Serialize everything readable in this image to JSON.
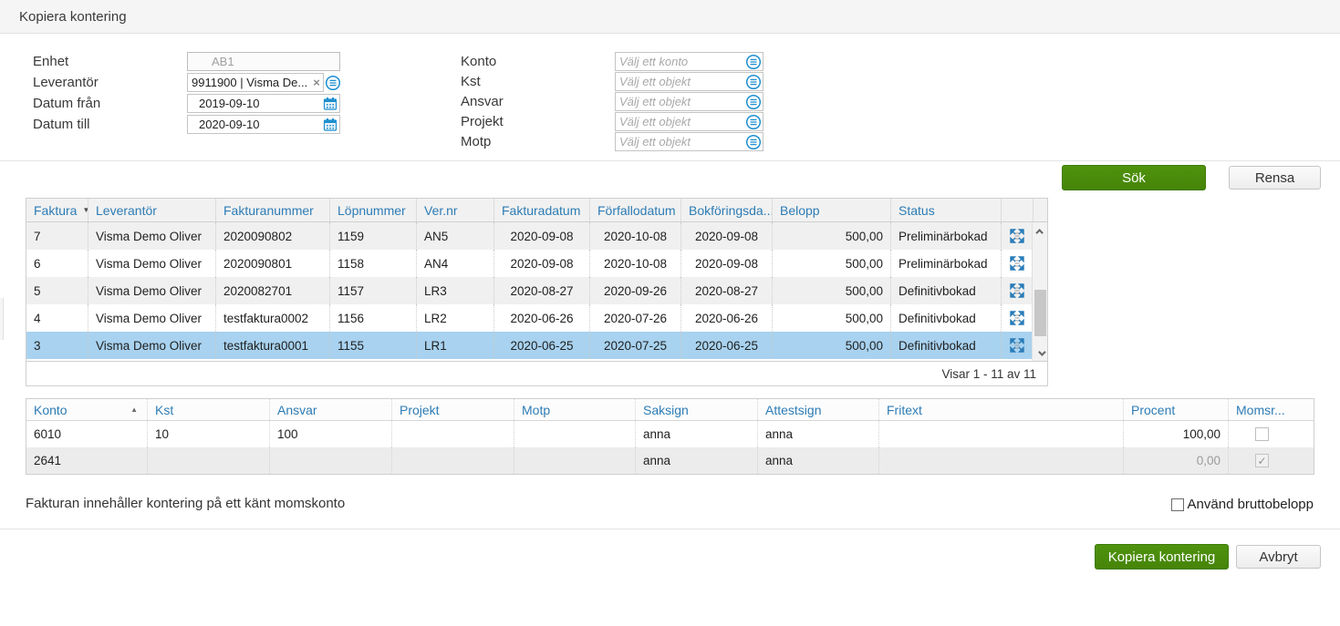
{
  "header": {
    "title": "Kopiera kontering"
  },
  "filters": {
    "left": [
      {
        "label": "Enhet",
        "value": "AB1"
      },
      {
        "label": "Leverantör",
        "value": "9911900 | Visma De..."
      },
      {
        "label": "Datum från",
        "value": "2019-09-10"
      },
      {
        "label": "Datum till",
        "value": "2020-09-10"
      }
    ],
    "right": [
      {
        "label": "Konto",
        "placeholder": "Välj ett konto"
      },
      {
        "label": "Kst",
        "placeholder": "Välj ett objekt"
      },
      {
        "label": "Ansvar",
        "placeholder": "Välj ett objekt"
      },
      {
        "label": "Projekt",
        "placeholder": "Välj ett objekt"
      },
      {
        "label": "Motp",
        "placeholder": "Välj ett objekt"
      }
    ]
  },
  "actions": {
    "search_label": "Sök",
    "clear_label": "Rensa"
  },
  "invoice_grid": {
    "columns": [
      "Faktura",
      "Leverantör",
      "Fakturanummer",
      "Löpnummer",
      "Ver.nr",
      "Fakturadatum",
      "Förfallodatum",
      "Bokföringsda...",
      "Belopp",
      "Status"
    ],
    "sort": {
      "column": "Faktura",
      "direction": "desc"
    },
    "rows": [
      [
        "7",
        "Visma Demo Oliver",
        "2020090802",
        "1159",
        "AN5",
        "2020-09-08",
        "2020-10-08",
        "2020-09-08",
        "500,00",
        "Preliminärbokad"
      ],
      [
        "6",
        "Visma Demo Oliver",
        "2020090801",
        "1158",
        "AN4",
        "2020-09-08",
        "2020-10-08",
        "2020-09-08",
        "500,00",
        "Preliminärbokad"
      ],
      [
        "5",
        "Visma Demo Oliver",
        "2020082701",
        "1157",
        "LR3",
        "2020-08-27",
        "2020-09-26",
        "2020-08-27",
        "500,00",
        "Definitivbokad"
      ],
      [
        "4",
        "Visma Demo Oliver",
        "testfaktura0002",
        "1156",
        "LR2",
        "2020-06-26",
        "2020-07-26",
        "2020-06-26",
        "500,00",
        "Definitivbokad"
      ],
      [
        "3",
        "Visma Demo Oliver",
        "testfaktura0001",
        "1155",
        "LR1",
        "2020-06-25",
        "2020-07-25",
        "2020-06-25",
        "500,00",
        "Definitivbokad"
      ]
    ],
    "selected_row_index": 4,
    "pagination": "Visar 1 - 11 av 11"
  },
  "accounting_grid": {
    "columns": [
      "Konto",
      "Kst",
      "Ansvar",
      "Projekt",
      "Motp",
      "Saksign",
      "Attestsign",
      "Fritext",
      "Procent",
      "Momsr..."
    ],
    "sort": {
      "column": "Konto",
      "direction": "asc"
    },
    "rows": [
      {
        "cells": [
          "6010",
          "10",
          "100",
          "",
          "",
          "anna",
          "anna",
          "",
          "100,00"
        ],
        "moms_checked": false,
        "dimmed": false
      },
      {
        "cells": [
          "2641",
          "",
          "",
          "",
          "",
          "anna",
          "anna",
          "",
          "0,00"
        ],
        "moms_checked": true,
        "dimmed": true
      }
    ]
  },
  "footer": {
    "info_text": "Fakturan innehåller kontering på ett känt momskonto",
    "gross_checkbox_label": "Använd bruttobelopp",
    "gross_checked": false,
    "copy_label": "Kopiera kontering",
    "cancel_label": "Avbryt"
  },
  "colors": {
    "accent_green": "#4a8a0c",
    "link_blue": "#2d7cb5",
    "icon_blue": "#1e8fd0",
    "selection_blue": "#a8d2ef"
  }
}
